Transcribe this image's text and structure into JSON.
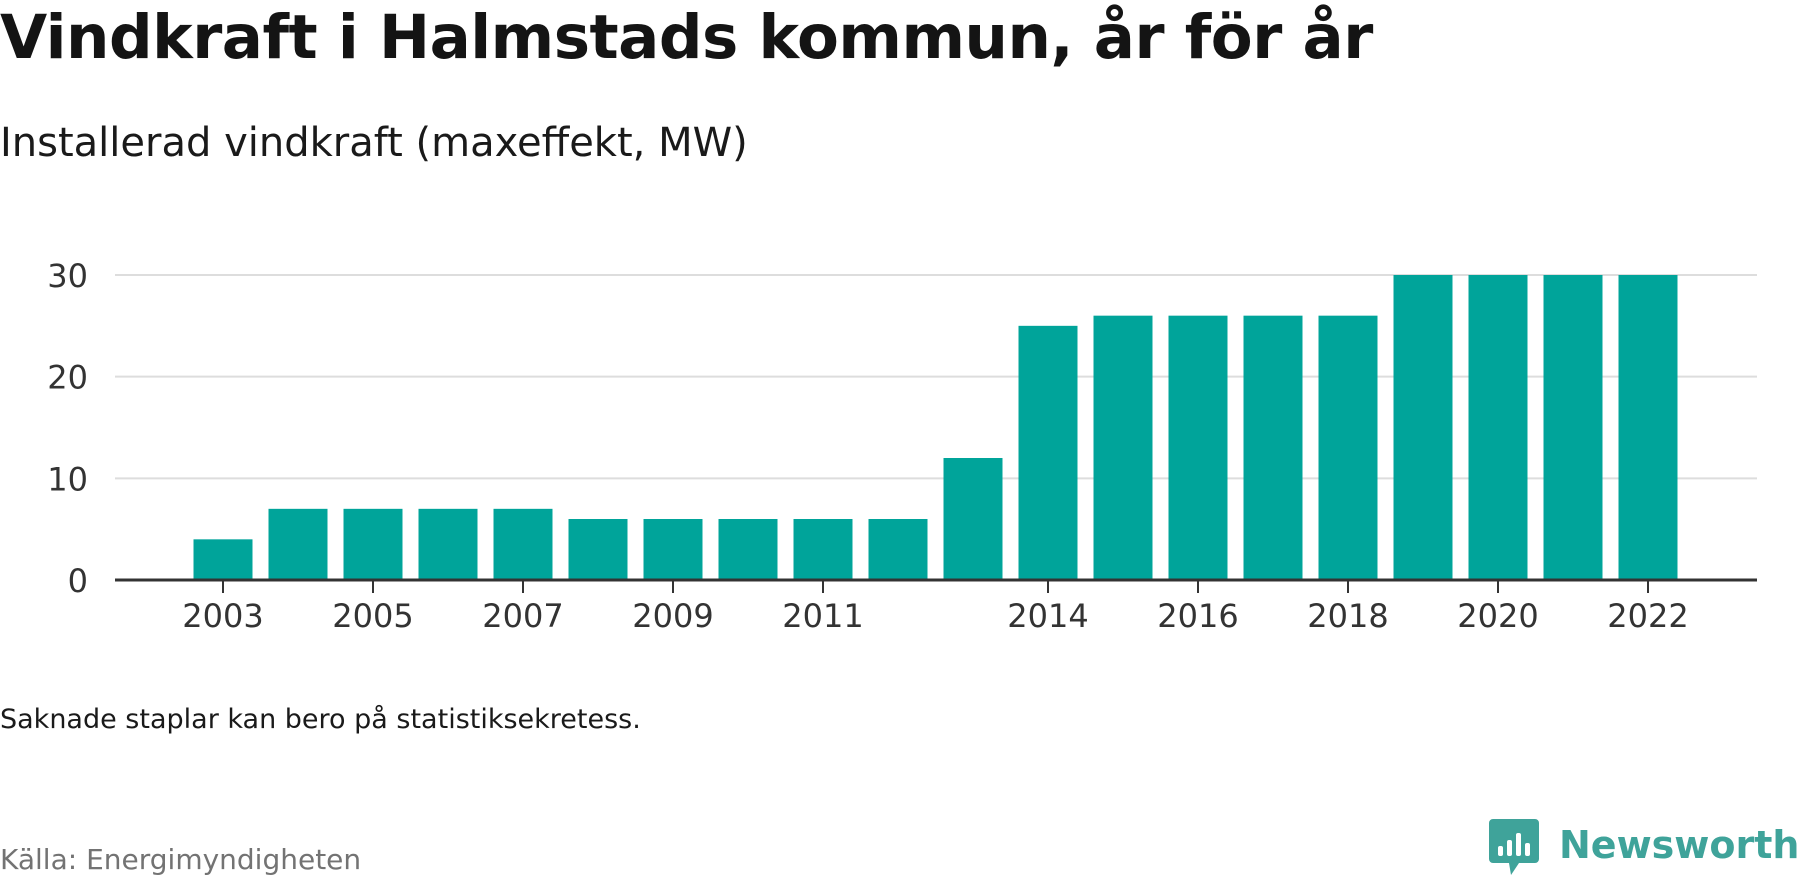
{
  "title": "Vindkraft i Halmstads kommun, år för år",
  "subtitle": "Installerad vindkraft (maxeffekt, MW)",
  "note": "Saknade staplar kan bero på statistiksekretess.",
  "source": "Källa: Energimyndigheten",
  "brand": {
    "name": "Newsworthy",
    "color": "#3fa39a",
    "icon": "newsworthy-logo-icon"
  },
  "colors": {
    "bar": "#00a49a",
    "grid": "#dddddd",
    "axis": "#333333",
    "tick_text": "#333333"
  },
  "chart_data": {
    "type": "bar",
    "title": "Installerad vindkraft (maxeffekt, MW)",
    "categories": [
      "2003",
      "2004",
      "2005",
      "2006",
      "2007",
      "2008",
      "2009",
      "2010",
      "2011",
      "2012",
      "2013",
      "2014",
      "2015",
      "2016",
      "2017",
      "2018",
      "2019",
      "2020",
      "2021",
      "2022"
    ],
    "values": [
      4,
      7,
      7,
      7,
      7,
      6,
      6,
      6,
      6,
      6,
      12,
      25,
      26,
      26,
      26,
      26,
      30,
      30,
      30,
      30
    ],
    "x_tick_labels": [
      "2003",
      "2005",
      "2007",
      "2009",
      "2011",
      "2014",
      "2016",
      "2018",
      "2020",
      "2022"
    ],
    "y_ticks": [
      0,
      10,
      20,
      30
    ],
    "ylim": [
      0,
      30
    ],
    "xlabel": "",
    "ylabel": "",
    "grid": true,
    "legend": "none"
  }
}
